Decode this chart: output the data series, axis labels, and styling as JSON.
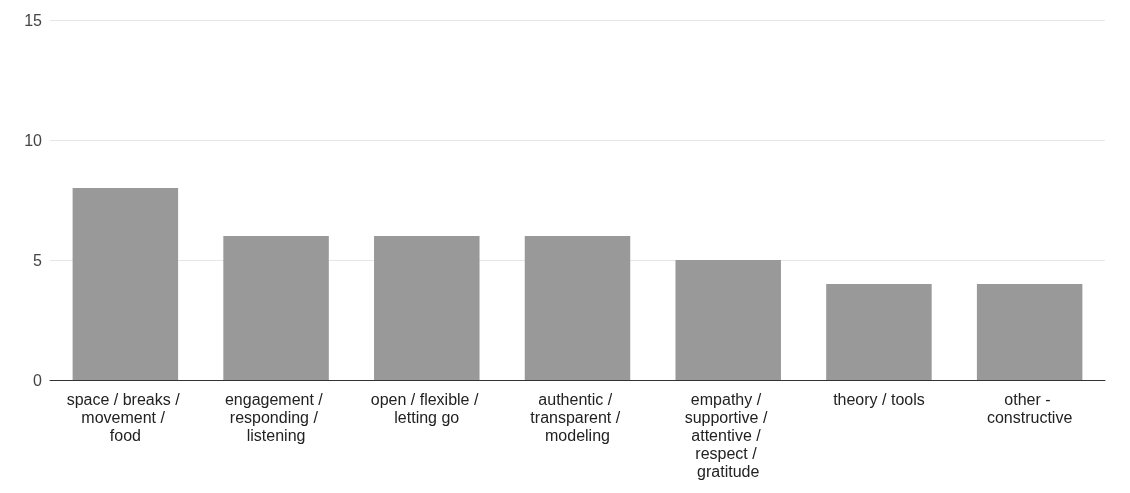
{
  "chart_data": {
    "type": "bar",
    "categories": [
      "space / breaks / movement / food",
      "engagement / responding / listening",
      "open / flexible / letting go",
      "authentic / transparent / modeling",
      "empathy / supportive / attentive / respect / gratitude",
      "theory / tools",
      "other - constructive"
    ],
    "values": [
      8,
      6,
      6,
      6,
      5,
      4,
      4
    ],
    "color": "#999999",
    "ylim": [
      0,
      15
    ],
    "yticks": [
      0,
      5,
      10,
      15
    ],
    "grid": "y"
  }
}
